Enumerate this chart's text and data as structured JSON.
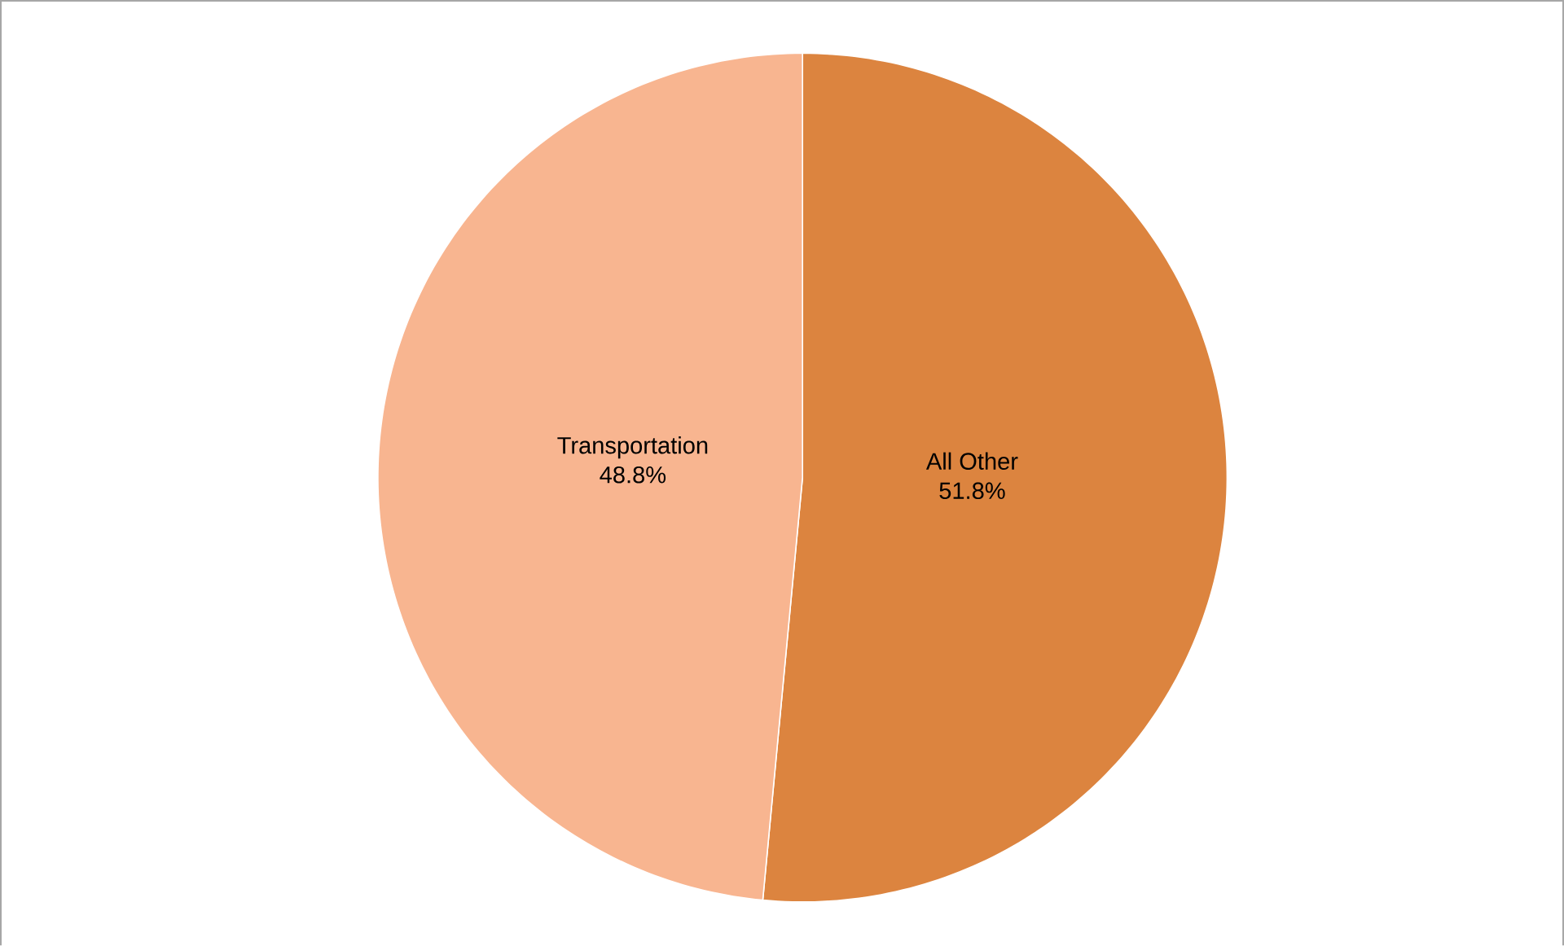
{
  "chart_data": {
    "type": "pie",
    "categories": [
      "All Other",
      "Transportation"
    ],
    "values": [
      51.8,
      48.8
    ],
    "value_labels": [
      "51.8%",
      "48.8%"
    ],
    "colors": [
      "#dc843f",
      "#f8b590"
    ]
  }
}
